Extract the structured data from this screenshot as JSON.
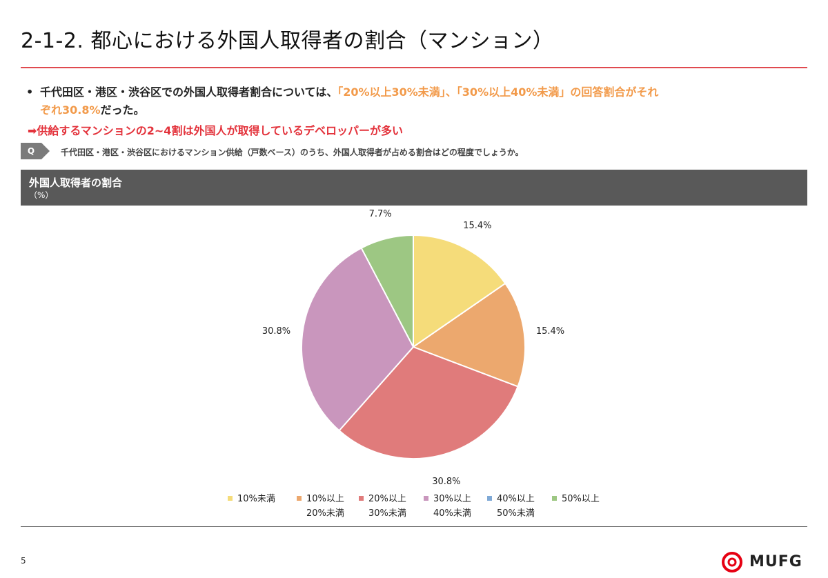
{
  "slide": {
    "title": "2-1-2.  都心における外国人取得者の割合（マンション）",
    "page_number": "5",
    "logo_text": "MUFG"
  },
  "bullet": {
    "marker": "•",
    "text_a": "千代田区・港区・渋谷区での外国人取得者割合については、",
    "highlight_1": "「20%以上30%未満」、「30%以上40%未満」の回答割合がそれぞれ30.8%",
    "text_b": "だった。"
  },
  "conclusion": "➡供給するマンションの2~4割は外国人が取得しているデベロッパーが多い",
  "question": {
    "label": "Q",
    "text": "千代田区・港区・渋谷区におけるマンション供給（戸数ベース）のうち、外国人取得者が占める割合はどの程度でしょうか。"
  },
  "chart_header": {
    "title": "外国人取得者の割合",
    "unit": "（%）"
  },
  "colors": {
    "accent_rule": "#e04a4f",
    "conclusion": "#e3323b",
    "highlight": "#f29a4a",
    "header_bg": "#595959",
    "logo_red": "#e60012"
  },
  "chart_data": {
    "type": "pie",
    "start": "12 o'clock, clockwise",
    "slices": [
      {
        "label": "10%未満",
        "value": 15.4,
        "display": "15.4%",
        "color": "#f5dc7a"
      },
      {
        "label": "10%以上\n20%未満",
        "value": 15.4,
        "display": "15.4%",
        "color": "#eca86e"
      },
      {
        "label": "20%以上\n30%未満",
        "value": 30.8,
        "display": "30.8%",
        "color": "#e07b7b"
      },
      {
        "label": "30%以上\n40%未満",
        "value": 30.8,
        "display": "30.8%",
        "color": "#c996bd"
      },
      {
        "label": "40%以上\n50%未満",
        "value": 0,
        "display": "",
        "color": "#7fa9d6"
      },
      {
        "label": "50%以上",
        "value": 7.7,
        "display": "7.7%",
        "color": "#9dc783"
      }
    ],
    "legend_position": "bottom"
  }
}
